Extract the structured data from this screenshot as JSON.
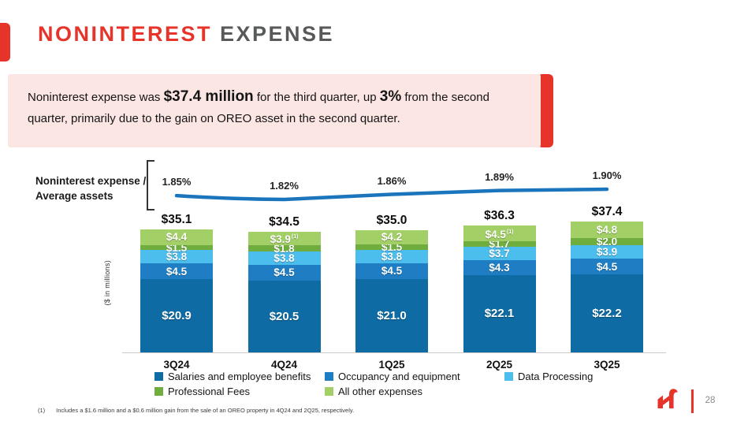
{
  "header": {
    "title_primary": "NONINTEREST",
    "title_secondary": "EXPENSE"
  },
  "callout": {
    "part1": "Noninterest expense was ",
    "bold1": "$37.4 million",
    "part2": " for the third quarter, up ",
    "bold2": "3%",
    "part3": " from the second quarter, primarily due to the gain on OREO asset in the second quarter."
  },
  "chart_data": {
    "type": "stacked-bar-with-line",
    "ylabel": "($ in millions)",
    "line_label_line1": "Noninterest expense /",
    "line_label_line2": "Average assets",
    "categories": [
      "3Q24",
      "4Q24",
      "1Q25",
      "2Q25",
      "3Q25"
    ],
    "series": [
      {
        "name": "Salaries and employee benefits",
        "color": "#0e6ba3",
        "values": [
          20.9,
          20.5,
          21.0,
          22.1,
          22.2
        ]
      },
      {
        "name": "Occupancy and equipment",
        "color": "#1f7ec3",
        "values": [
          4.5,
          4.5,
          4.5,
          4.3,
          4.5
        ]
      },
      {
        "name": "Data Processing",
        "color": "#4cbeee",
        "values": [
          3.8,
          3.8,
          3.8,
          3.7,
          3.9
        ]
      },
      {
        "name": "Professional Fees",
        "color": "#6fae3e",
        "values": [
          1.5,
          1.8,
          1.5,
          1.7,
          2.0
        ]
      },
      {
        "name": "All other expenses",
        "color": "#a3d066",
        "values": [
          4.4,
          3.9,
          4.2,
          4.5,
          4.8
        ]
      }
    ],
    "totals": [
      "$35.1",
      "$34.5",
      "$35.0",
      "$36.3",
      "$37.4"
    ],
    "superscripts": [
      {
        "series": 4,
        "category": 1,
        "text": "(1)"
      },
      {
        "series": 4,
        "category": 3,
        "text": "(1)"
      }
    ],
    "line": {
      "name": "Noninterest expense / Average assets",
      "color": "#1b75bc",
      "values_pct": [
        1.85,
        1.82,
        1.86,
        1.89,
        1.9
      ],
      "labels": [
        "1.85%",
        "1.82%",
        "1.86%",
        "1.89%",
        "1.90%"
      ]
    },
    "legend_position": "bottom",
    "grid": false
  },
  "footnote": {
    "marker": "(1)",
    "text": "Includes a $1.6 million and a $0.6 million gain from the sale of an OREO property in 4Q24 and 2Q25, respectively."
  },
  "footer": {
    "page_number": "28"
  },
  "colors": {
    "accent_red": "#e6342b",
    "callout_background": "#fbe6e3",
    "title_gray": "#58595b"
  }
}
